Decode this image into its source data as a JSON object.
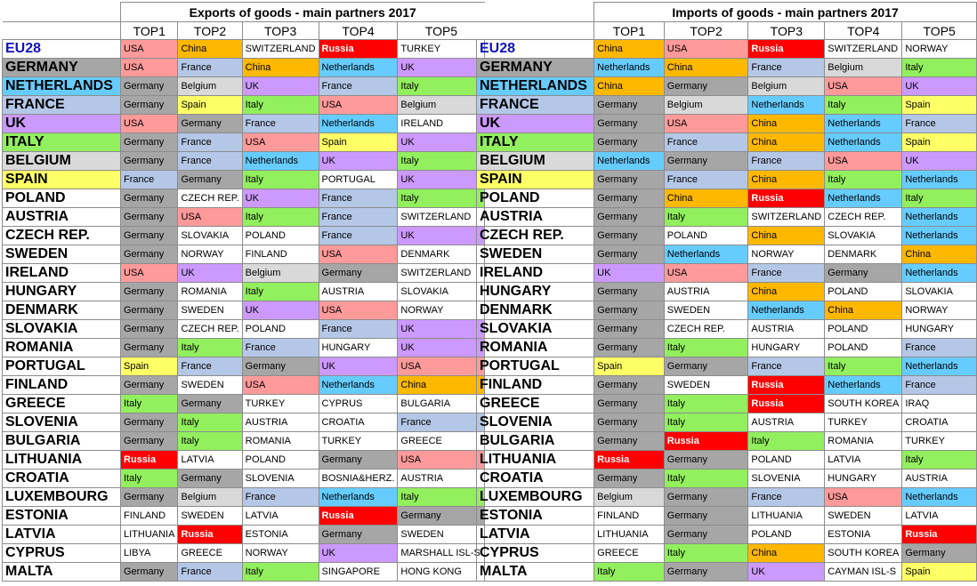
{
  "colors": {
    "USA": "#ff9a9a",
    "China": "#ffb800",
    "SWITZERLAND": "#ffffff",
    "Russia": "#ff0000",
    "TURKEY": "#ffffff",
    "France": "#b4c7e7",
    "Netherlands": "#66ccff",
    "UK": "#cc99ff",
    "Germany": "#a6a6a6",
    "Belgium": "#d9d9d9",
    "Italy": "#92ef5e",
    "Spain": "#ffff66",
    "default": "#ffffff",
    "row_GERMANY": "#a6a6a6",
    "row_NETHERLANDS": "#66ccff",
    "row_FRANCE": "#b4c7e7",
    "row_UK": "#cc99ff",
    "row_ITALY": "#92ef5e",
    "row_BELGIUM": "#d9d9d9",
    "row_SPAIN": "#ffff66"
  },
  "chart_data": [
    {
      "type": "table",
      "title": "Exports of goods - main partners 2017",
      "columns": [
        "TOP1",
        "TOP2",
        "TOP3",
        "TOP4",
        "TOP5"
      ],
      "rows": [
        {
          "country": "EU28",
          "values": [
            "USA",
            "China",
            "SWITZERLAND",
            "Russia",
            "TURKEY"
          ]
        },
        {
          "country": "GERMANY",
          "values": [
            "USA",
            "France",
            "China",
            "Netherlands",
            "UK"
          ]
        },
        {
          "country": "NETHERLANDS",
          "values": [
            "Germany",
            "Belgium",
            "UK",
            "France",
            "Italy"
          ]
        },
        {
          "country": "FRANCE",
          "values": [
            "Germany",
            "Spain",
            "Italy",
            "USA",
            "Belgium"
          ]
        },
        {
          "country": "UK",
          "values": [
            "USA",
            "Germany",
            "France",
            "Netherlands",
            "IRELAND"
          ]
        },
        {
          "country": "ITALY",
          "values": [
            "Germany",
            "France",
            "USA",
            "Spain",
            "UK"
          ]
        },
        {
          "country": "BELGIUM",
          "values": [
            "Germany",
            "France",
            "Netherlands",
            "UK",
            "Italy"
          ]
        },
        {
          "country": "SPAIN",
          "values": [
            "France",
            "Germany",
            "Italy",
            "PORTUGAL",
            "UK"
          ]
        },
        {
          "country": "POLAND",
          "values": [
            "Germany",
            "CZECH REP.",
            "UK",
            "France",
            "Italy"
          ]
        },
        {
          "country": "AUSTRIA",
          "values": [
            "Germany",
            "USA",
            "Italy",
            "France",
            "SWITZERLAND"
          ]
        },
        {
          "country": "CZECH REP.",
          "values": [
            "Germany",
            "SLOVAKIA",
            "POLAND",
            "France",
            "UK"
          ]
        },
        {
          "country": "SWEDEN",
          "values": [
            "Germany",
            "NORWAY",
            "FINLAND",
            "USA",
            "DENMARK"
          ]
        },
        {
          "country": "IRELAND",
          "values": [
            "USA",
            "UK",
            "Belgium",
            "Germany",
            "SWITZERLAND"
          ]
        },
        {
          "country": "HUNGARY",
          "values": [
            "Germany",
            "ROMANIA",
            "Italy",
            "AUSTRIA",
            "SLOVAKIA"
          ]
        },
        {
          "country": "DENMARK",
          "values": [
            "Germany",
            "SWEDEN",
            "UK",
            "USA",
            "NORWAY"
          ]
        },
        {
          "country": "SLOVAKIA",
          "values": [
            "Germany",
            "CZECH REP.",
            "POLAND",
            "France",
            "UK"
          ]
        },
        {
          "country": "ROMANIA",
          "values": [
            "Germany",
            "Italy",
            "France",
            "HUNGARY",
            "UK"
          ]
        },
        {
          "country": "PORTUGAL",
          "values": [
            "Spain",
            "France",
            "Germany",
            "UK",
            "USA"
          ]
        },
        {
          "country": "FINLAND",
          "values": [
            "Germany",
            "SWEDEN",
            "USA",
            "Netherlands",
            "China"
          ]
        },
        {
          "country": "GREECE",
          "values": [
            "Italy",
            "Germany",
            "TURKEY",
            "CYPRUS",
            "BULGARIA"
          ]
        },
        {
          "country": "SLOVENIA",
          "values": [
            "Germany",
            "Italy",
            "AUSTRIA",
            "CROATIA",
            "France"
          ]
        },
        {
          "country": "BULGARIA",
          "values": [
            "Germany",
            "Italy",
            "ROMANIA",
            "TURKEY",
            "GREECE"
          ]
        },
        {
          "country": "LITHUANIA",
          "values": [
            "Russia",
            "LATVIA",
            "POLAND",
            "Germany",
            "USA"
          ]
        },
        {
          "country": "CROATIA",
          "values": [
            "Italy",
            "Germany",
            "SLOVENIA",
            "BOSNIA&HERZ.",
            "AUSTRIA"
          ]
        },
        {
          "country": "LUXEMBOURG",
          "values": [
            "Germany",
            "Belgium",
            "France",
            "Netherlands",
            "Italy"
          ]
        },
        {
          "country": "ESTONIA",
          "values": [
            "FINLAND",
            "SWEDEN",
            "LATVIA",
            "Russia",
            "Germany"
          ]
        },
        {
          "country": "LATVIA",
          "values": [
            "LITHUANIA",
            "Russia",
            "ESTONIA",
            "Germany",
            "SWEDEN"
          ]
        },
        {
          "country": "CYPRUS",
          "values": [
            "LIBYA",
            "GREECE",
            "NORWAY",
            "UK",
            "MARSHALL ISL-S"
          ]
        },
        {
          "country": "MALTA",
          "values": [
            "Germany",
            "France",
            "Italy",
            "SINGAPORE",
            "HONG KONG"
          ]
        }
      ]
    },
    {
      "type": "table",
      "title": "Imports of goods - main partners 2017",
      "columns": [
        "TOP1",
        "TOP2",
        "TOP3",
        "TOP4",
        "TOP5"
      ],
      "rows": [
        {
          "country": "EU28",
          "values": [
            "China",
            "USA",
            "Russia",
            "SWITZERLAND",
            "NORWAY"
          ]
        },
        {
          "country": "GERMANY",
          "values": [
            "Netherlands",
            "China",
            "France",
            "Belgium",
            "Italy"
          ]
        },
        {
          "country": "NETHERLANDS",
          "values": [
            "China",
            "Germany",
            "Belgium",
            "USA",
            "UK"
          ]
        },
        {
          "country": "FRANCE",
          "values": [
            "Germany",
            "Belgium",
            "Netherlands",
            "Italy",
            "Spain"
          ]
        },
        {
          "country": "UK",
          "values": [
            "Germany",
            "USA",
            "China",
            "Netherlands",
            "France"
          ]
        },
        {
          "country": "ITALY",
          "values": [
            "Germany",
            "France",
            "China",
            "Netherlands",
            "Spain"
          ]
        },
        {
          "country": "BELGIUM",
          "values": [
            "Netherlands",
            "Germany",
            "France",
            "USA",
            "UK"
          ]
        },
        {
          "country": "SPAIN",
          "values": [
            "Germany",
            "France",
            "China",
            "Italy",
            "Netherlands"
          ]
        },
        {
          "country": "POLAND",
          "values": [
            "Germany",
            "China",
            "Russia",
            "Netherlands",
            "Italy"
          ]
        },
        {
          "country": "AUSTRIA",
          "values": [
            "Germany",
            "Italy",
            "SWITZERLAND",
            "CZECH REP.",
            "Netherlands"
          ]
        },
        {
          "country": "CZECH REP.",
          "values": [
            "Germany",
            "POLAND",
            "China",
            "SLOVAKIA",
            "Netherlands"
          ]
        },
        {
          "country": "SWEDEN",
          "values": [
            "Germany",
            "Netherlands",
            "NORWAY",
            "DENMARK",
            "China"
          ]
        },
        {
          "country": "IRELAND",
          "values": [
            "UK",
            "USA",
            "France",
            "Germany",
            "Netherlands"
          ]
        },
        {
          "country": "HUNGARY",
          "values": [
            "Germany",
            "AUSTRIA",
            "China",
            "POLAND",
            "SLOVAKIA"
          ]
        },
        {
          "country": "DENMARK",
          "values": [
            "Germany",
            "SWEDEN",
            "Netherlands",
            "China",
            "NORWAY"
          ]
        },
        {
          "country": "SLOVAKIA",
          "values": [
            "Germany",
            "CZECH REP.",
            "AUSTRIA",
            "POLAND",
            "HUNGARY"
          ]
        },
        {
          "country": "ROMANIA",
          "values": [
            "Germany",
            "Italy",
            "HUNGARY",
            "POLAND",
            "France"
          ]
        },
        {
          "country": "PORTUGAL",
          "values": [
            "Spain",
            "Germany",
            "France",
            "Italy",
            "Netherlands"
          ]
        },
        {
          "country": "FINLAND",
          "values": [
            "Germany",
            "SWEDEN",
            "Russia",
            "Netherlands",
            "France"
          ]
        },
        {
          "country": "GREECE",
          "values": [
            "Germany",
            "Italy",
            "Russia",
            "SOUTH KOREA",
            "IRAQ"
          ]
        },
        {
          "country": "SLOVENIA",
          "values": [
            "Germany",
            "Italy",
            "AUSTRIA",
            "TURKEY",
            "CROATIA"
          ]
        },
        {
          "country": "BULGARIA",
          "values": [
            "Germany",
            "Russia",
            "Italy",
            "ROMANIA",
            "TURKEY"
          ]
        },
        {
          "country": "LITHUANIA",
          "values": [
            "Russia",
            "Germany",
            "POLAND",
            "LATVIA",
            "Italy"
          ]
        },
        {
          "country": "CROATIA",
          "values": [
            "Germany",
            "Italy",
            "SLOVENIA",
            "HUNGARY",
            "AUSTRIA"
          ]
        },
        {
          "country": "LUXEMBOURG",
          "values": [
            "Belgium",
            "Germany",
            "France",
            "USA",
            "Netherlands"
          ]
        },
        {
          "country": "ESTONIA",
          "values": [
            "FINLAND",
            "Germany",
            "LITHUANIA",
            "SWEDEN",
            "LATVIA"
          ]
        },
        {
          "country": "LATVIA",
          "values": [
            "LITHUANIA",
            "Germany",
            "POLAND",
            "ESTONIA",
            "Russia"
          ]
        },
        {
          "country": "CYPRUS",
          "values": [
            "GREECE",
            "Italy",
            "China",
            "SOUTH KOREA",
            "Germany"
          ]
        },
        {
          "country": "MALTA",
          "values": [
            "Italy",
            "Germany",
            "UK",
            "CAYMAN ISL-S",
            "Spain"
          ]
        }
      ]
    }
  ]
}
